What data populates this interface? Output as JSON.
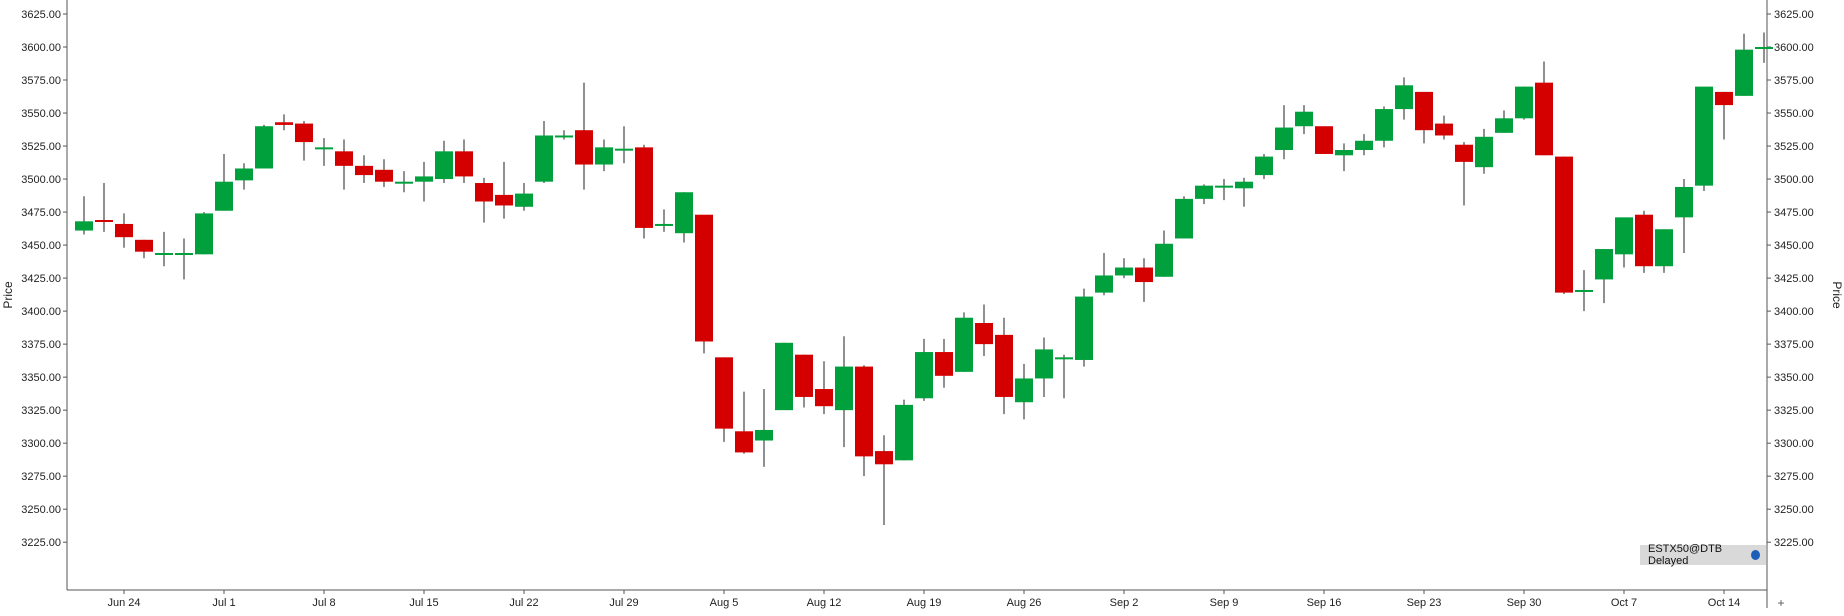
{
  "chart_data": {
    "type": "candlestick",
    "ylabel": "Price",
    "ylim": [
      3215,
      3630
    ],
    "yticks": [
      3225,
      3250,
      3275,
      3300,
      3325,
      3350,
      3375,
      3400,
      3425,
      3450,
      3475,
      3500,
      3525,
      3550,
      3575,
      3600,
      3625
    ],
    "ytick_labels": [
      "3225.00",
      "3250.00",
      "3275.00",
      "3300.00",
      "3325.00",
      "3350.00",
      "3375.00",
      "3400.00",
      "3425.00",
      "3450.00",
      "3475.00",
      "3500.00",
      "3525.00",
      "3550.00",
      "3575.00",
      "3600.00",
      "3625.00"
    ],
    "xtick_labels": [
      {
        "index": 2,
        "label": "Jun 24"
      },
      {
        "index": 7,
        "label": "Jul 1"
      },
      {
        "index": 12,
        "label": "Jul 8"
      },
      {
        "index": 17,
        "label": "Jul 15"
      },
      {
        "index": 22,
        "label": "Jul 22"
      },
      {
        "index": 27,
        "label": "Jul 29"
      },
      {
        "index": 32,
        "label": "Aug 5"
      },
      {
        "index": 37,
        "label": "Aug 12"
      },
      {
        "index": 42,
        "label": "Aug 19"
      },
      {
        "index": 47,
        "label": "Aug 26"
      },
      {
        "index": 52,
        "label": "Sep 2"
      },
      {
        "index": 57,
        "label": "Sep 9"
      },
      {
        "index": 62,
        "label": "Sep 16"
      },
      {
        "index": 67,
        "label": "Sep 23"
      },
      {
        "index": 72,
        "label": "Sep 30"
      },
      {
        "index": 77,
        "label": "Oct 7"
      },
      {
        "index": 82,
        "label": "Oct 14"
      }
    ],
    "up_color": "#00a03c",
    "down_color": "#d40000",
    "legend_badge": "ESTX50@DTB Delayed",
    "candles": [
      {
        "o": 3461,
        "h": 3487,
        "l": 3458,
        "c": 3468
      },
      {
        "o": 3469,
        "h": 3497,
        "l": 3460,
        "c": 3468
      },
      {
        "o": 3466,
        "h": 3474,
        "l": 3448,
        "c": 3456
      },
      {
        "o": 3454,
        "h": 3454,
        "l": 3440,
        "c": 3445
      },
      {
        "o": 3444,
        "h": 3460,
        "l": 3434,
        "c": 3444
      },
      {
        "o": 3444,
        "h": 3455,
        "l": 3424,
        "c": 3444
      },
      {
        "o": 3443,
        "h": 3475,
        "l": 3443,
        "c": 3474
      },
      {
        "o": 3476,
        "h": 3519,
        "l": 3476,
        "c": 3498
      },
      {
        "o": 3499,
        "h": 3512,
        "l": 3492,
        "c": 3508
      },
      {
        "o": 3508,
        "h": 3541,
        "l": 3508,
        "c": 3540
      },
      {
        "o": 3543,
        "h": 3549,
        "l": 3537,
        "c": 3541
      },
      {
        "o": 3542,
        "h": 3544,
        "l": 3514,
        "c": 3528
      },
      {
        "o": 3524,
        "h": 3531,
        "l": 3510,
        "c": 3524
      },
      {
        "o": 3521,
        "h": 3530,
        "l": 3492,
        "c": 3510
      },
      {
        "o": 3510,
        "h": 3518,
        "l": 3497,
        "c": 3503
      },
      {
        "o": 3507,
        "h": 3515,
        "l": 3494,
        "c": 3498
      },
      {
        "o": 3497,
        "h": 3506,
        "l": 3490,
        "c": 3498
      },
      {
        "o": 3498,
        "h": 3513,
        "l": 3483,
        "c": 3502
      },
      {
        "o": 3500,
        "h": 3529,
        "l": 3497,
        "c": 3521
      },
      {
        "o": 3521,
        "h": 3530,
        "l": 3497,
        "c": 3502
      },
      {
        "o": 3497,
        "h": 3501,
        "l": 3467,
        "c": 3483
      },
      {
        "o": 3488,
        "h": 3513,
        "l": 3470,
        "c": 3480
      },
      {
        "o": 3479,
        "h": 3497,
        "l": 3476,
        "c": 3489
      },
      {
        "o": 3498,
        "h": 3544,
        "l": 3497,
        "c": 3533
      },
      {
        "o": 3533,
        "h": 3537,
        "l": 3530,
        "c": 3533
      },
      {
        "o": 3537,
        "h": 3573,
        "l": 3492,
        "c": 3511
      },
      {
        "o": 3511,
        "h": 3530,
        "l": 3506,
        "c": 3524
      },
      {
        "o": 3523,
        "h": 3540,
        "l": 3512,
        "c": 3523
      },
      {
        "o": 3524,
        "h": 3526,
        "l": 3455,
        "c": 3463
      },
      {
        "o": 3465,
        "h": 3477,
        "l": 3460,
        "c": 3466
      },
      {
        "o": 3459,
        "h": 3490,
        "l": 3452,
        "c": 3490
      },
      {
        "o": 3473,
        "h": 3473,
        "l": 3368,
        "c": 3377
      },
      {
        "o": 3365,
        "h": 3365,
        "l": 3301,
        "c": 3311
      },
      {
        "o": 3309,
        "h": 3339,
        "l": 3292,
        "c": 3293
      },
      {
        "o": 3302,
        "h": 3341,
        "l": 3282,
        "c": 3310
      },
      {
        "o": 3325,
        "h": 3376,
        "l": 3325,
        "c": 3376
      },
      {
        "o": 3367,
        "h": 3367,
        "l": 3327,
        "c": 3335
      },
      {
        "o": 3341,
        "h": 3362,
        "l": 3322,
        "c": 3328
      },
      {
        "o": 3325,
        "h": 3381,
        "l": 3297,
        "c": 3358
      },
      {
        "o": 3358,
        "h": 3359,
        "l": 3275,
        "c": 3290
      },
      {
        "o": 3294,
        "h": 3306,
        "l": 3238,
        "c": 3284
      },
      {
        "o": 3287,
        "h": 3333,
        "l": 3287,
        "c": 3329
      },
      {
        "o": 3334,
        "h": 3379,
        "l": 3332,
        "c": 3369
      },
      {
        "o": 3369,
        "h": 3379,
        "l": 3342,
        "c": 3351
      },
      {
        "o": 3354,
        "h": 3399,
        "l": 3354,
        "c": 3395
      },
      {
        "o": 3391,
        "h": 3405,
        "l": 3366,
        "c": 3375
      },
      {
        "o": 3382,
        "h": 3395,
        "l": 3322,
        "c": 3335
      },
      {
        "o": 3331,
        "h": 3360,
        "l": 3318,
        "c": 3349
      },
      {
        "o": 3349,
        "h": 3380,
        "l": 3335,
        "c": 3371
      },
      {
        "o": 3364,
        "h": 3367,
        "l": 3334,
        "c": 3365
      },
      {
        "o": 3363,
        "h": 3417,
        "l": 3358,
        "c": 3411
      },
      {
        "o": 3414,
        "h": 3444,
        "l": 3412,
        "c": 3427
      },
      {
        "o": 3427,
        "h": 3440,
        "l": 3425,
        "c": 3433
      },
      {
        "o": 3433,
        "h": 3440,
        "l": 3407,
        "c": 3422
      },
      {
        "o": 3426,
        "h": 3461,
        "l": 3426,
        "c": 3451
      },
      {
        "o": 3455,
        "h": 3487,
        "l": 3455,
        "c": 3485
      },
      {
        "o": 3485,
        "h": 3496,
        "l": 3481,
        "c": 3495
      },
      {
        "o": 3495,
        "h": 3500,
        "l": 3484,
        "c": 3495
      },
      {
        "o": 3493,
        "h": 3501,
        "l": 3479,
        "c": 3498
      },
      {
        "o": 3503,
        "h": 3519,
        "l": 3500,
        "c": 3517
      },
      {
        "o": 3522,
        "h": 3556,
        "l": 3515,
        "c": 3539
      },
      {
        "o": 3540,
        "h": 3556,
        "l": 3534,
        "c": 3551
      },
      {
        "o": 3540,
        "h": 3540,
        "l": 3519,
        "c": 3519
      },
      {
        "o": 3518,
        "h": 3527,
        "l": 3506,
        "c": 3522
      },
      {
        "o": 3522,
        "h": 3534,
        "l": 3518,
        "c": 3529
      },
      {
        "o": 3529,
        "h": 3555,
        "l": 3524,
        "c": 3553
      },
      {
        "o": 3553,
        "h": 3577,
        "l": 3545,
        "c": 3571
      },
      {
        "o": 3566,
        "h": 3566,
        "l": 3527,
        "c": 3537
      },
      {
        "o": 3542,
        "h": 3548,
        "l": 3530,
        "c": 3533
      },
      {
        "o": 3526,
        "h": 3528,
        "l": 3480,
        "c": 3513
      },
      {
        "o": 3509,
        "h": 3538,
        "l": 3504,
        "c": 3532
      },
      {
        "o": 3535,
        "h": 3552,
        "l": 3535,
        "c": 3546
      },
      {
        "o": 3546,
        "h": 3570,
        "l": 3545,
        "c": 3570
      },
      {
        "o": 3573,
        "h": 3589,
        "l": 3518,
        "c": 3518
      },
      {
        "o": 3517,
        "h": 3517,
        "l": 3413,
        "c": 3414
      },
      {
        "o": 3416,
        "h": 3431,
        "l": 3400,
        "c": 3416
      },
      {
        "o": 3424,
        "h": 3447,
        "l": 3406,
        "c": 3447
      },
      {
        "o": 3443,
        "h": 3471,
        "l": 3433,
        "c": 3471
      },
      {
        "o": 3473,
        "h": 3476,
        "l": 3429,
        "c": 3434
      },
      {
        "o": 3434,
        "h": 3462,
        "l": 3429,
        "c": 3462
      },
      {
        "o": 3471,
        "h": 3500,
        "l": 3444,
        "c": 3494
      },
      {
        "o": 3495,
        "h": 3570,
        "l": 3491,
        "c": 3570
      },
      {
        "o": 3566,
        "h": 3566,
        "l": 3530,
        "c": 3556
      },
      {
        "o": 3563,
        "h": 3610,
        "l": 3563,
        "c": 3598
      },
      {
        "o": 3600,
        "h": 3611,
        "l": 3588,
        "c": 3600
      }
    ]
  }
}
